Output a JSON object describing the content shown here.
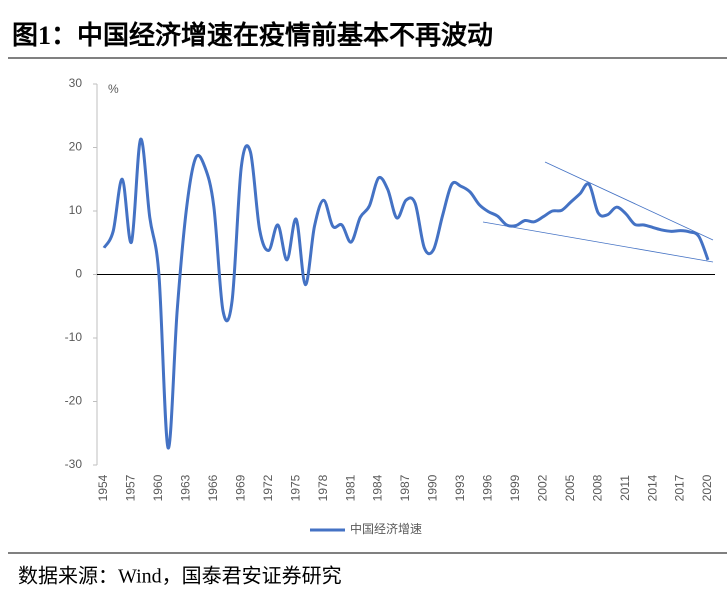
{
  "chart_data": {
    "type": "line",
    "title": "图1：中国经济增速在疫情前基本不再波动",
    "y_label": "%",
    "source": "数据来源：Wind，国泰君安证券研究",
    "x": [
      1954,
      1955,
      1956,
      1957,
      1958,
      1959,
      1960,
      1961,
      1962,
      1963,
      1964,
      1965,
      1966,
      1967,
      1968,
      1969,
      1970,
      1971,
      1972,
      1973,
      1974,
      1975,
      1976,
      1977,
      1978,
      1979,
      1980,
      1981,
      1982,
      1983,
      1984,
      1985,
      1986,
      1987,
      1988,
      1989,
      1990,
      1991,
      1992,
      1993,
      1994,
      1995,
      1996,
      1997,
      1998,
      1999,
      2000,
      2001,
      2002,
      2003,
      2004,
      2005,
      2006,
      2007,
      2008,
      2009,
      2010,
      2011,
      2012,
      2013,
      2014,
      2015,
      2016,
      2017,
      2018,
      2019,
      2020
    ],
    "series": [
      {
        "name": "中国经济增速",
        "color": "#4472c4",
        "values": [
          4.2,
          6.8,
          15.0,
          5.1,
          21.3,
          9.0,
          0.0,
          -27.3,
          -5.6,
          10.2,
          18.3,
          17.0,
          10.7,
          -5.7,
          -4.1,
          16.9,
          19.3,
          7.1,
          3.8,
          7.8,
          2.3,
          8.7,
          -1.6,
          7.6,
          11.7,
          7.6,
          7.8,
          5.1,
          9.0,
          10.8,
          15.2,
          13.4,
          8.9,
          11.7,
          11.2,
          4.2,
          3.9,
          9.3,
          14.2,
          13.9,
          13.0,
          11.0,
          9.9,
          9.2,
          7.8,
          7.7,
          8.5,
          8.3,
          9.1,
          10.0,
          10.1,
          11.4,
          12.7,
          14.2,
          9.7,
          9.4,
          10.6,
          9.6,
          7.9,
          7.8,
          7.4,
          7.0,
          6.8,
          6.9,
          6.7,
          6.0,
          2.3
        ]
      }
    ],
    "xlim": [
      1954,
      2020
    ],
    "xticks": [
      1954,
      1957,
      1960,
      1963,
      1966,
      1969,
      1972,
      1975,
      1978,
      1981,
      1984,
      1987,
      1990,
      1993,
      1996,
      1999,
      2002,
      2005,
      2008,
      2011,
      2014,
      2017,
      2020
    ],
    "ylim": [
      -30,
      30
    ],
    "yticks": [
      -30,
      -20,
      -10,
      0,
      10,
      20,
      30
    ]
  }
}
